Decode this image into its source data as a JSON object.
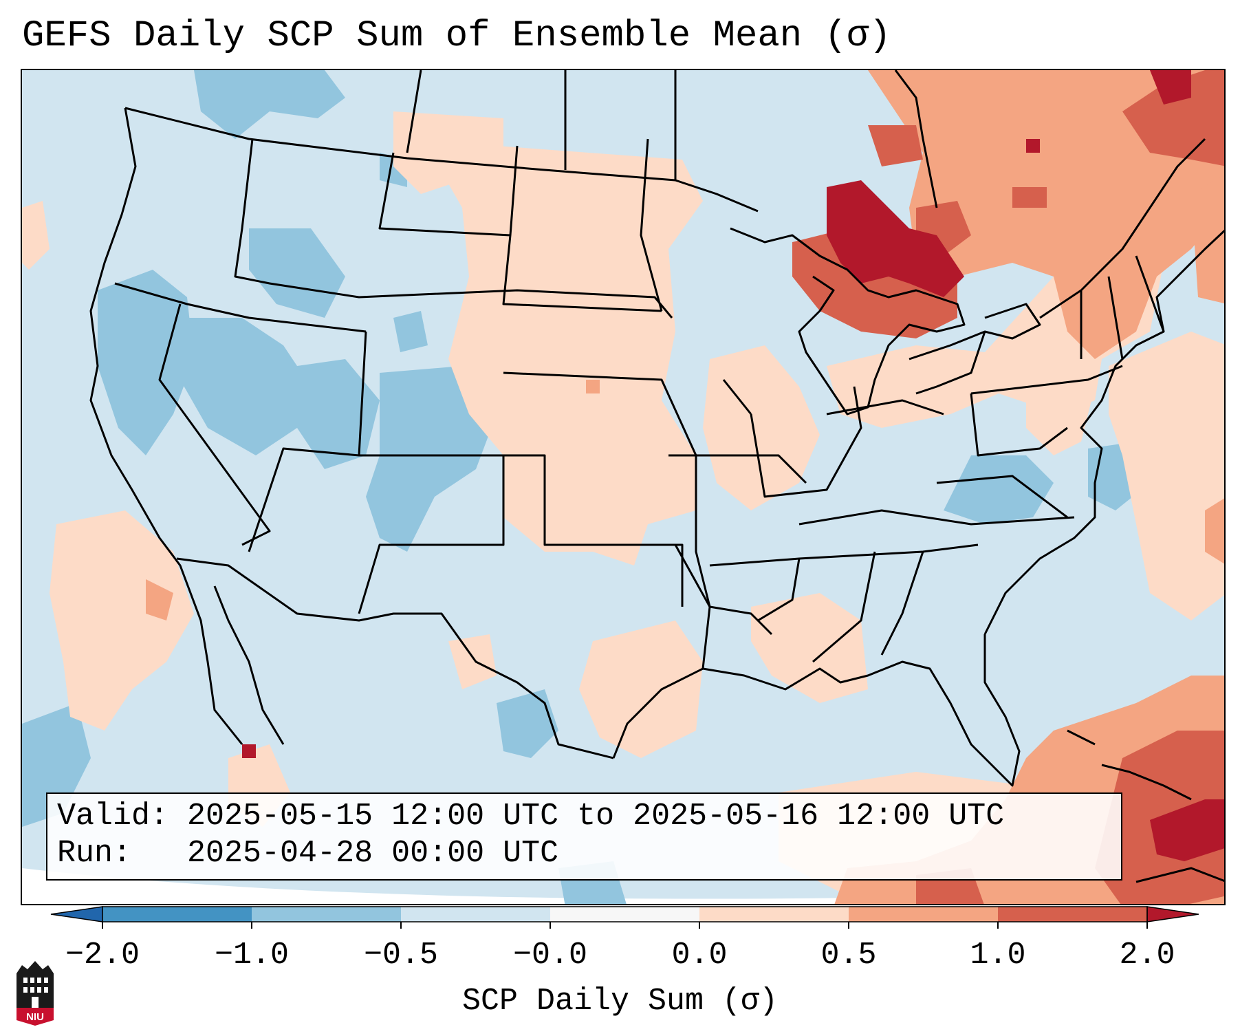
{
  "title": "GEFS Daily SCP Sum of Ensemble Mean (σ)",
  "info": {
    "valid_line": "Valid: 2025-05-15 12:00 UTC to 2025-05-16 12:00 UTC",
    "run_line": "Run:   2025-04-28 00:00 UTC"
  },
  "colorbar": {
    "label": "SCP Daily Sum (σ)",
    "ticks": [
      "−2.0",
      "−1.0",
      "−0.5",
      "−0.0",
      "0.0",
      "0.5",
      "1.0",
      "2.0"
    ],
    "bins": [
      {
        "range": "<-2.0",
        "color": "#2166ac"
      },
      {
        "range": "-2.0 to -1.0",
        "color": "#4393c3"
      },
      {
        "range": "-1.0 to -0.5",
        "color": "#92c5de"
      },
      {
        "range": "-0.5 to -0.0",
        "color": "#d1e5f0"
      },
      {
        "range": "-0.0 to 0.0",
        "color": "#f7f7f7"
      },
      {
        "range": "0.0 to 0.5",
        "color": "#fddbc7"
      },
      {
        "range": "0.5 to 1.0",
        "color": "#f4a582"
      },
      {
        "range": "1.0 to 2.0",
        "color": "#d6604d"
      },
      {
        "range": ">2.0",
        "color": "#b2182b"
      }
    ]
  },
  "map": {
    "region": "Contiguous United States",
    "projection": "Lambert conformal",
    "background_level": "-0.5 to -0.0",
    "field_description_regions": [
      {
        "area": "Western U.S. (Great Basin, Rockies)",
        "level": "-1.0 to -0.5"
      },
      {
        "area": "Northern/Central Plains",
        "level": "0.0 to 0.5"
      },
      {
        "area": "Upper Michigan / Great Lakes",
        "level": ">2.0"
      },
      {
        "area": "Ontario / Quebec",
        "level": "0.5 to 1.0"
      },
      {
        "area": "Western Atlantic / Caribbean",
        "level": "1.0 to 2.0"
      },
      {
        "area": "Mid-Atlantic (Virginia)",
        "level": "-1.0 to -0.5"
      }
    ]
  },
  "logo": {
    "name": "NIU",
    "text": "NIU"
  }
}
